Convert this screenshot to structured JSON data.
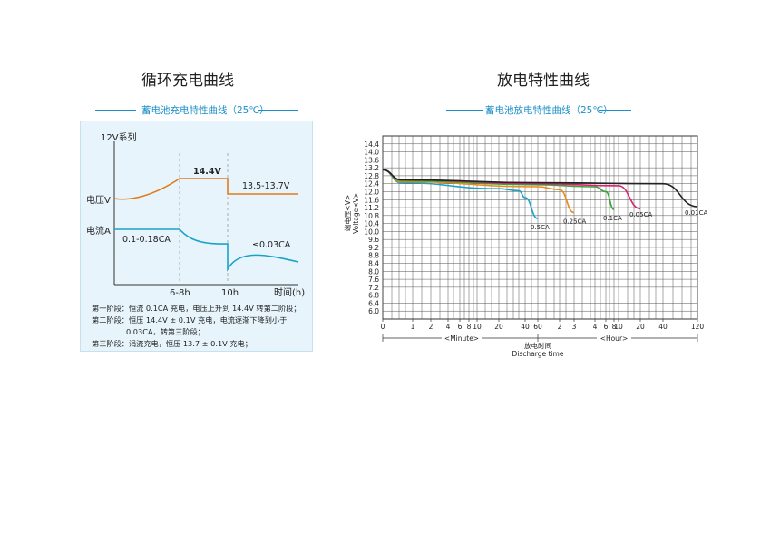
{
  "charge_section": {
    "title": "循环充电曲线",
    "subtitle": "蓄电池充电特性曲线（25℃）",
    "notes": [
      "第一阶段：恒流 0.1CA 充电，电压上升到  14.4V 转第二阶段；",
      "第二阶段：恒压   14.4V ± 0.1V 充电，电流逐渐下降到小于",
      "0.03CA，转第三阶段；",
      "第三阶段：涓流充电，恒压 13.7 ± 0.1V 充电；"
    ]
  },
  "discharge_section": {
    "title": "放电特性曲线",
    "subtitle": "蓄电池放电特性曲线（25℃）"
  },
  "colors": {
    "accent_blue": "#1a8fc9",
    "voltage_curve": "#e07b1a",
    "current_curve": "#1aa3c8",
    "curve_0_5CA": "#1aa3c8",
    "curve_0_25CA": "#e88b1d",
    "curve_0_1CA": "#3aa33a",
    "curve_0_05CA": "#d6246e",
    "curve_0_01CA": "#222222"
  },
  "chart_data": [
    {
      "type": "line",
      "title": "蓄电池充电特性曲线（25℃）",
      "series_system_label": "12V系列",
      "xlabel": "时间(h)",
      "x_ticks": [
        "6-8h",
        "10h"
      ],
      "series": [
        {
          "name": "电压V",
          "labels": [
            "14.4V",
            "13.5-13.7V"
          ]
        },
        {
          "name": "电流A",
          "labels": [
            "0.1-0.18CA",
            "≤0.03CA"
          ]
        }
      ]
    },
    {
      "type": "line",
      "title": "蓄电池放电特性曲线（25℃）",
      "ylabel": "端电压<V>  Voltage<V>",
      "xlabel": "放电时间  Discharge time",
      "y_ticks": [
        6.0,
        6.4,
        6.8,
        7.2,
        7.6,
        8.0,
        8.4,
        8.8,
        9.2,
        9.6,
        10.0,
        10.4,
        10.8,
        11.2,
        11.6,
        12.0,
        12.4,
        12.8,
        13.2,
        13.6,
        14.0,
        14.4
      ],
      "y_tick_labels_shown": [
        "6.0",
        "6.4",
        "6.8",
        "7.2",
        "7.6",
        "8.0",
        "8.4",
        "8.8",
        "9.2",
        "9.6",
        "10.0",
        "10.4",
        "10.8",
        "11.2",
        "11.6",
        "12.0",
        "12.4",
        "12.8",
        "13.2",
        "13.6",
        "14.0",
        "14.4"
      ],
      "ylim": [
        5.6,
        14.8
      ],
      "x_tick_labels": [
        "0",
        "1",
        "2",
        "4",
        "6",
        "8",
        "10",
        "20",
        "40",
        "60",
        "2",
        "3",
        "4",
        "6",
        "8",
        "10",
        "20",
        "40",
        "120"
      ],
      "x_segments": [
        "<Minute>",
        "<Hour>"
      ],
      "series": [
        {
          "name": "0.5CA",
          "points": [
            [
              0,
              13.1
            ],
            [
              1,
              12.45
            ],
            [
              20,
              12.15
            ],
            [
              40,
              12.05
            ],
            [
              50,
              11.7
            ],
            [
              60,
              10.65
            ]
          ]
        },
        {
          "name": "0.25CA",
          "points": [
            [
              0,
              13.1
            ],
            [
              1,
              12.5
            ],
            [
              60,
              12.25
            ],
            [
              2,
              12.1
            ],
            [
              3,
              10.95
            ]
          ]
        },
        {
          "name": "0.1CA",
          "points": [
            [
              0,
              13.1
            ],
            [
              1,
              12.55
            ],
            [
              60,
              12.35
            ],
            [
              4,
              12.25
            ],
            [
              8,
              12.0
            ],
            [
              10,
              11.1
            ]
          ]
        },
        {
          "name": "0.05CA",
          "points": [
            [
              0,
              13.1
            ],
            [
              1,
              12.6
            ],
            [
              60,
              12.4
            ],
            [
              10,
              12.3
            ],
            [
              20,
              11.15
            ]
          ]
        },
        {
          "name": "0.01CA",
          "points": [
            [
              0,
              13.1
            ],
            [
              1,
              12.6
            ],
            [
              60,
              12.45
            ],
            [
              40,
              12.4
            ],
            [
              120,
              11.25
            ]
          ]
        }
      ]
    }
  ]
}
